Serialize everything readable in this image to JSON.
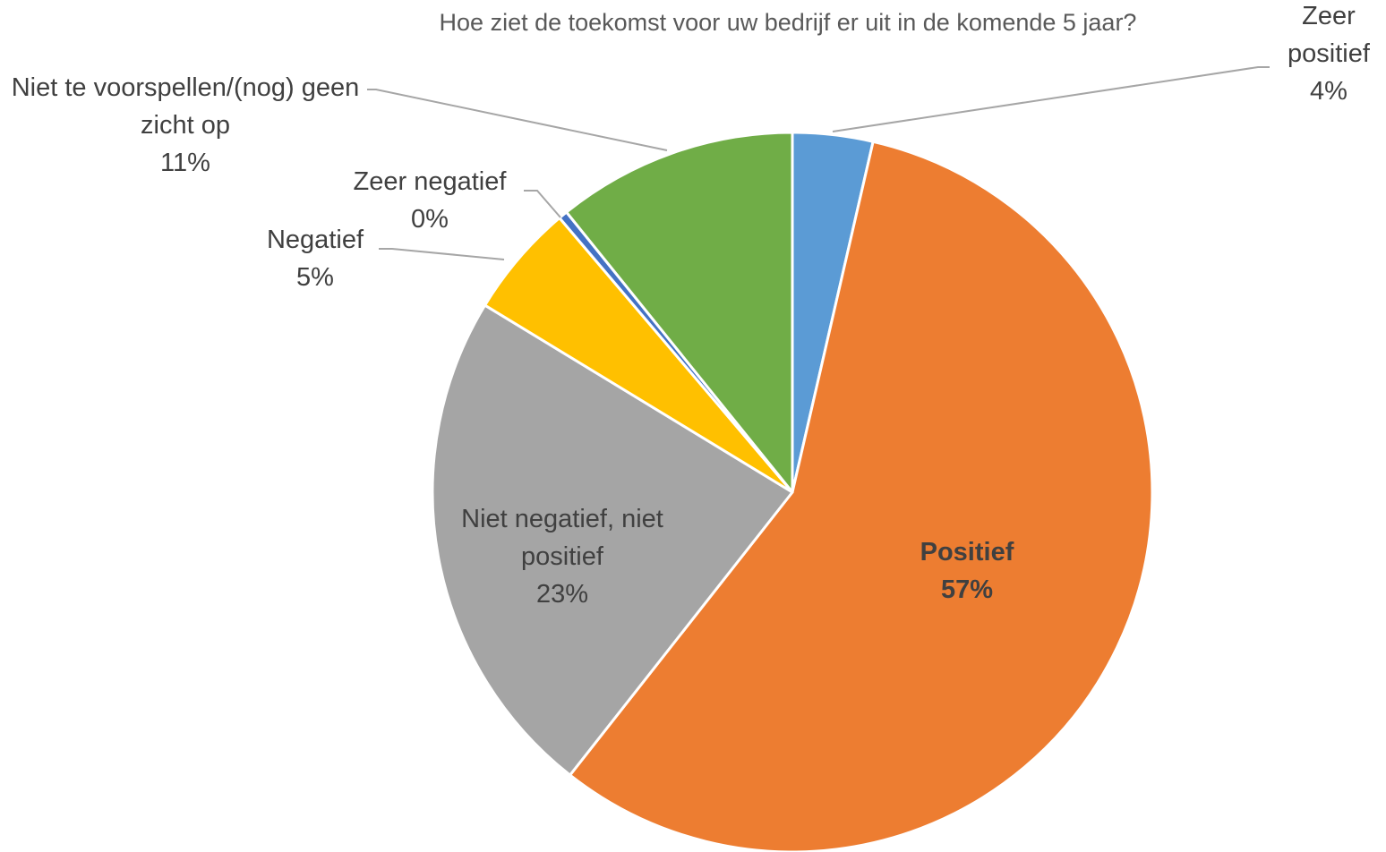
{
  "chart_data": {
    "type": "pie",
    "title": "Hoe ziet de toekomst voor uw bedrijf er uit in de komende 5 jaar?",
    "categories": [
      "Zeer positief",
      "Positief",
      "Niet negatief, niet positief",
      "Negatief",
      "Zeer negatief",
      "Niet te voorspellen/(nog) geen zicht op"
    ],
    "values": [
      3.6,
      57,
      23.1,
      5.1,
      0.4,
      10.8
    ],
    "value_labels": [
      "4%",
      "57%",
      "23%",
      "5%",
      "0%",
      "11%"
    ],
    "colors": [
      "#5b9bd5",
      "#ed7d31",
      "#a5a5a5",
      "#ffc000",
      "#4472c4",
      "#70ad47"
    ]
  }
}
